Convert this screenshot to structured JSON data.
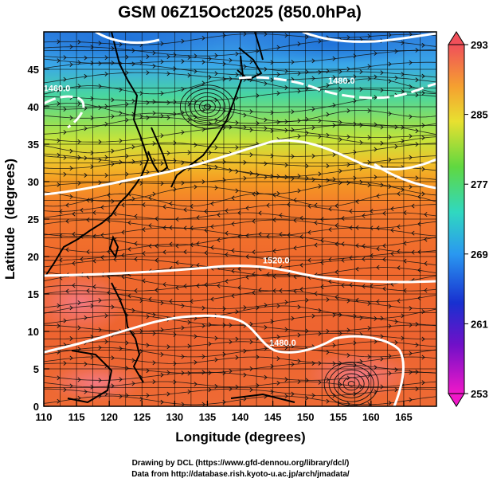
{
  "title": "GSM 06Z15Oct2025 (850.0hPa)",
  "xlabel": "Longitude (degrees)",
  "ylabel": "Latitude  (degrees)",
  "credits": [
    "Drawing by DCL (https://www.gfd-dennou.org/library/dcl/)",
    "Data from http://database.rish.kyoto-u.ac.jp/arch/jmadata/"
  ],
  "x_ticks": [
    110,
    115,
    120,
    125,
    130,
    135,
    140,
    145,
    150,
    155,
    160,
    165
  ],
  "y_ticks": [
    0,
    5,
    10,
    15,
    20,
    25,
    30,
    35,
    40,
    45
  ],
  "xlim": [
    110,
    170
  ],
  "ylim": [
    0,
    50
  ],
  "colorbar": {
    "min": 253,
    "max": 293,
    "labels": [
      293,
      285,
      277,
      269,
      261,
      253
    ]
  },
  "contour_labels": [
    {
      "text": "1520.0",
      "lon": 145.5,
      "lat": 19.5
    },
    {
      "text": "1480.0",
      "lon": 146.5,
      "lat": 8.5
    },
    {
      "text": "1480.0",
      "lon": 155.5,
      "lat": 43.5
    },
    {
      "text": "1460.0",
      "lon": 112,
      "lat": 42.5
    }
  ],
  "features": [
    {
      "name": "cyclonic-swirl",
      "lon": 135,
      "lat": 40
    },
    {
      "name": "cyclonic-swirl",
      "lon": 157,
      "lat": 3
    }
  ]
}
